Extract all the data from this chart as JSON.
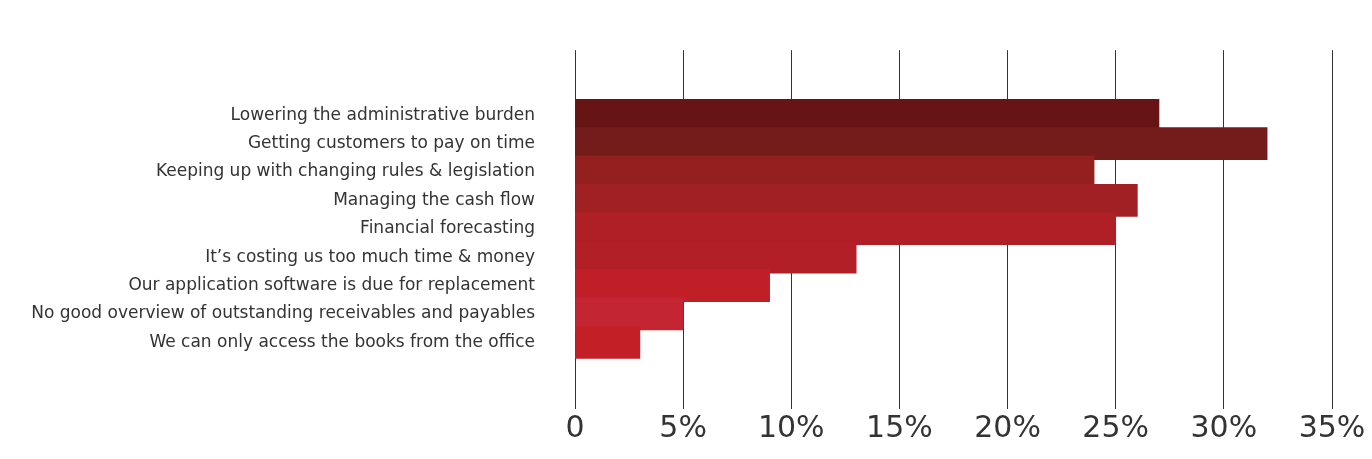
{
  "chart_data": {
    "type": "bar",
    "orientation": "horizontal",
    "categories": [
      "Lowering the administrative burden",
      "Getting customers to pay on time",
      "Keeping up with changing rules & legislation",
      "Managing the cash flow",
      "Financial forecasting",
      "It’s costing us too much time & money",
      "Our application software is due for replacement",
      "No good overview of outstanding receivables and payables",
      "We can only access the books from the office"
    ],
    "values": [
      27,
      32,
      24,
      26,
      25,
      13,
      9,
      5,
      3
    ],
    "colors": [
      "#661514",
      "#731c1b",
      "#93201f",
      "#a12023",
      "#b01e26",
      "#b21f27",
      "#c01f28",
      "#c42533",
      "#c21f27"
    ],
    "xlim": [
      0,
      35
    ],
    "xticks": [
      0,
      {
        "value": 5,
        "label": "5%"
      },
      {
        "value": 10,
        "label": "10%"
      },
      {
        "value": 15,
        "label": "15%"
      },
      {
        "value": 20,
        "label": "20%"
      },
      {
        "value": 25,
        "label": "25%"
      },
      {
        "value": 30,
        "label": "30%"
      },
      {
        "value": 35,
        "label": "35%"
      }
    ],
    "grid": "x",
    "legend": false
  }
}
